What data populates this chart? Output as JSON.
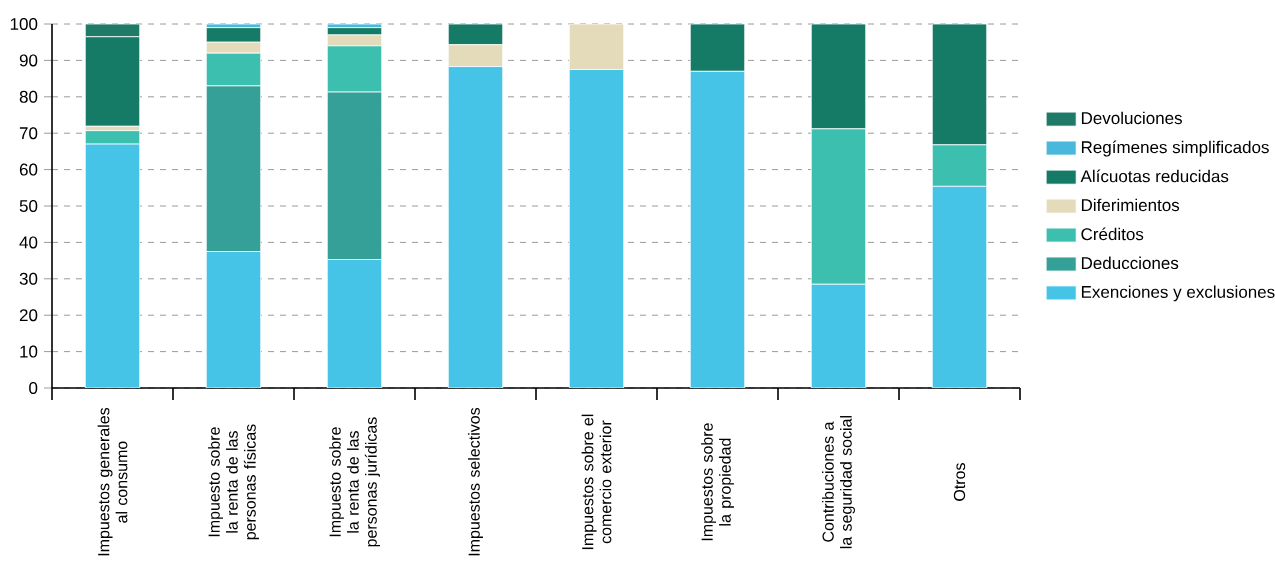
{
  "chart_data": {
    "type": "bar",
    "stacked": true,
    "categories": [
      "Impuestos generales al consumo",
      "Impuesto sobre la renta de las personas físicas",
      "Impuesto sobre la renta de las personas jurídicas",
      "Impuestos selectivos",
      "Impuestos sobre el comercio exterior",
      "Impuestos sobre la propiedad",
      "Contribuciones a la seguridad social",
      "Otros"
    ],
    "series": [
      {
        "name": "Exenciones y exclusiones",
        "color": "#45c4e8",
        "values": [
          67,
          37.5,
          35.3,
          88.3,
          87.5,
          87,
          28.5,
          55.4
        ]
      },
      {
        "name": "Deducciones",
        "color": "#35a097",
        "values": [
          0,
          45.5,
          46,
          0,
          0,
          0,
          0,
          0
        ]
      },
      {
        "name": "Créditos",
        "color": "#3dbfb0",
        "values": [
          3.7,
          9,
          12.7,
          0,
          0,
          0,
          42.7,
          11.4
        ]
      },
      {
        "name": "Diferimientos",
        "color": "#e3dbb9",
        "values": [
          1.2,
          3,
          3,
          6,
          12.5,
          0,
          0,
          0
        ]
      },
      {
        "name": "Alícuotas reducidas",
        "color": "#157a66",
        "values": [
          24.6,
          4,
          2,
          5.7,
          0,
          13,
          28.8,
          33.2
        ]
      },
      {
        "name": "Regímenes simplificados",
        "color": "#4ab8dc",
        "values": [
          0,
          1,
          1,
          0,
          0,
          0,
          0,
          0
        ]
      },
      {
        "name": "Devoluciones",
        "color": "#1f7a68",
        "values": [
          3.5,
          0,
          0,
          0,
          0,
          0,
          0,
          0
        ]
      }
    ],
    "ylim": [
      0,
      100
    ],
    "yticks": [
      0,
      10,
      20,
      30,
      40,
      50,
      60,
      70,
      80,
      90,
      100
    ],
    "grid": "y",
    "legend": "right"
  }
}
